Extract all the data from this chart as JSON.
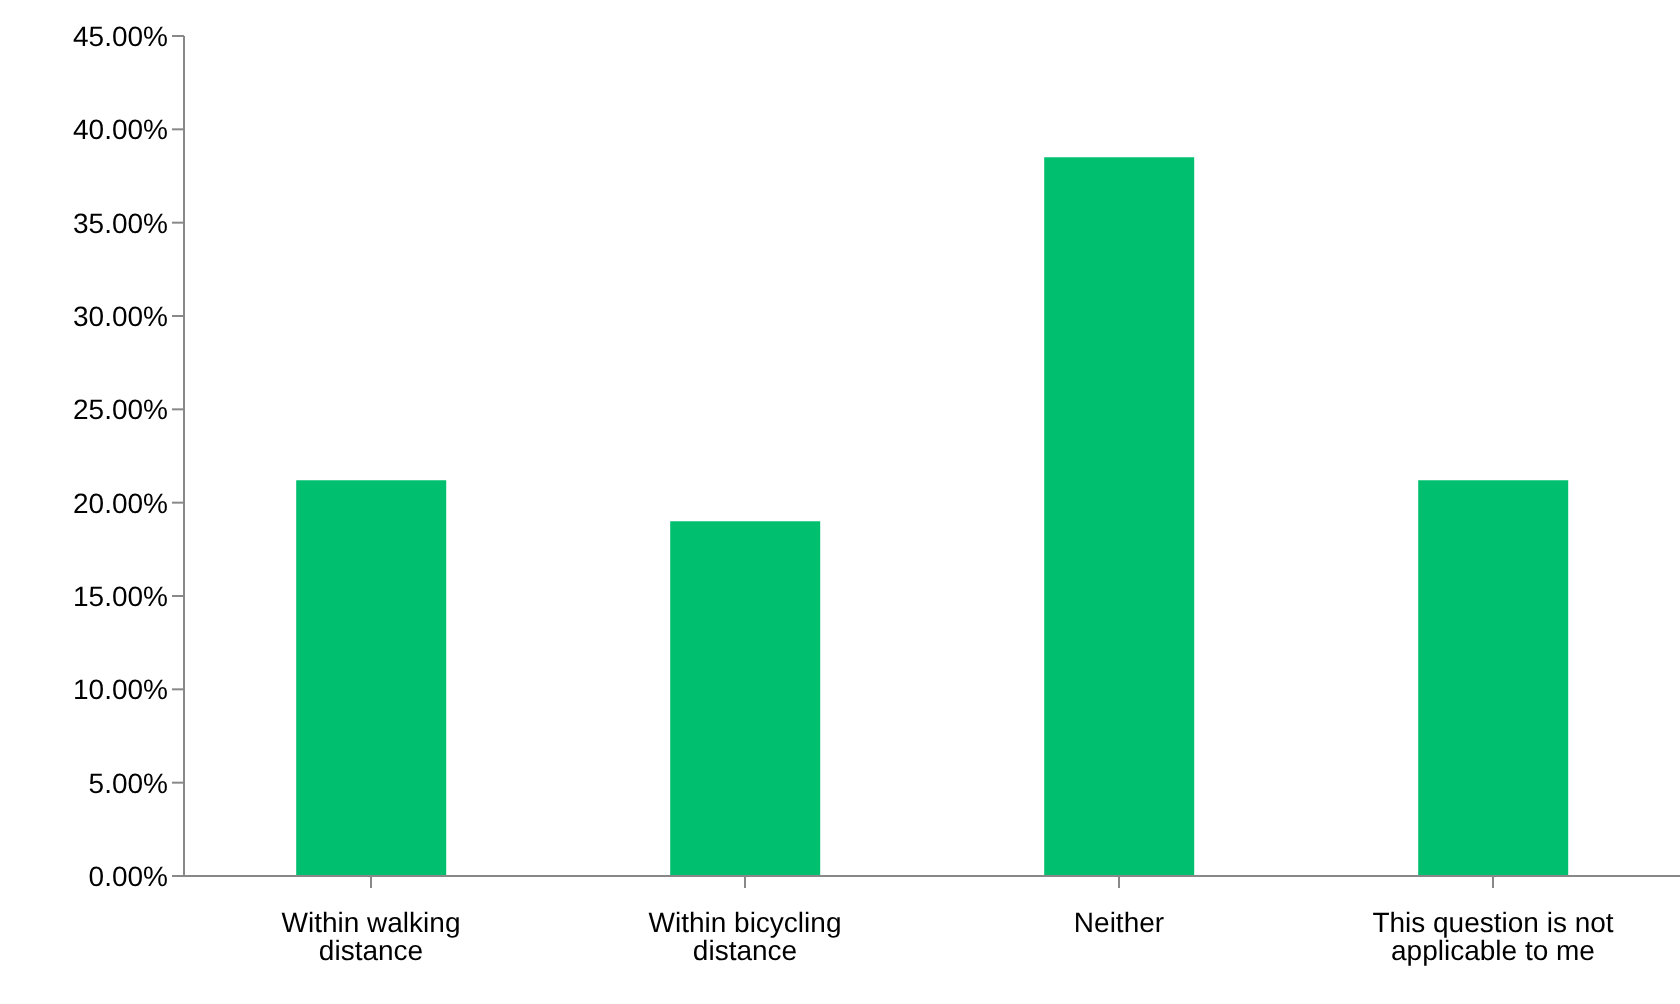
{
  "chart_data": {
    "type": "bar",
    "categories": [
      "Within walking distance",
      "Within bicycling distance",
      "Neither",
      "This question is not applicable to me"
    ],
    "values": [
      21.2,
      19.0,
      38.5,
      21.2
    ],
    "color": "#00c070",
    "ylim": [
      0,
      45
    ],
    "yticks": [
      {
        "value": 0,
        "label": "0.00%"
      },
      {
        "value": 5,
        "label": "5.00%"
      },
      {
        "value": 10,
        "label": "10.00%"
      },
      {
        "value": 15,
        "label": "15.00%"
      },
      {
        "value": 20,
        "label": "20.00%"
      },
      {
        "value": 25,
        "label": "25.00%"
      },
      {
        "value": 30,
        "label": "30.00%"
      },
      {
        "value": 35,
        "label": "35.00%"
      },
      {
        "value": 40,
        "label": "40.00%"
      },
      {
        "value": 45,
        "label": "45.00%"
      }
    ],
    "grid": false
  }
}
